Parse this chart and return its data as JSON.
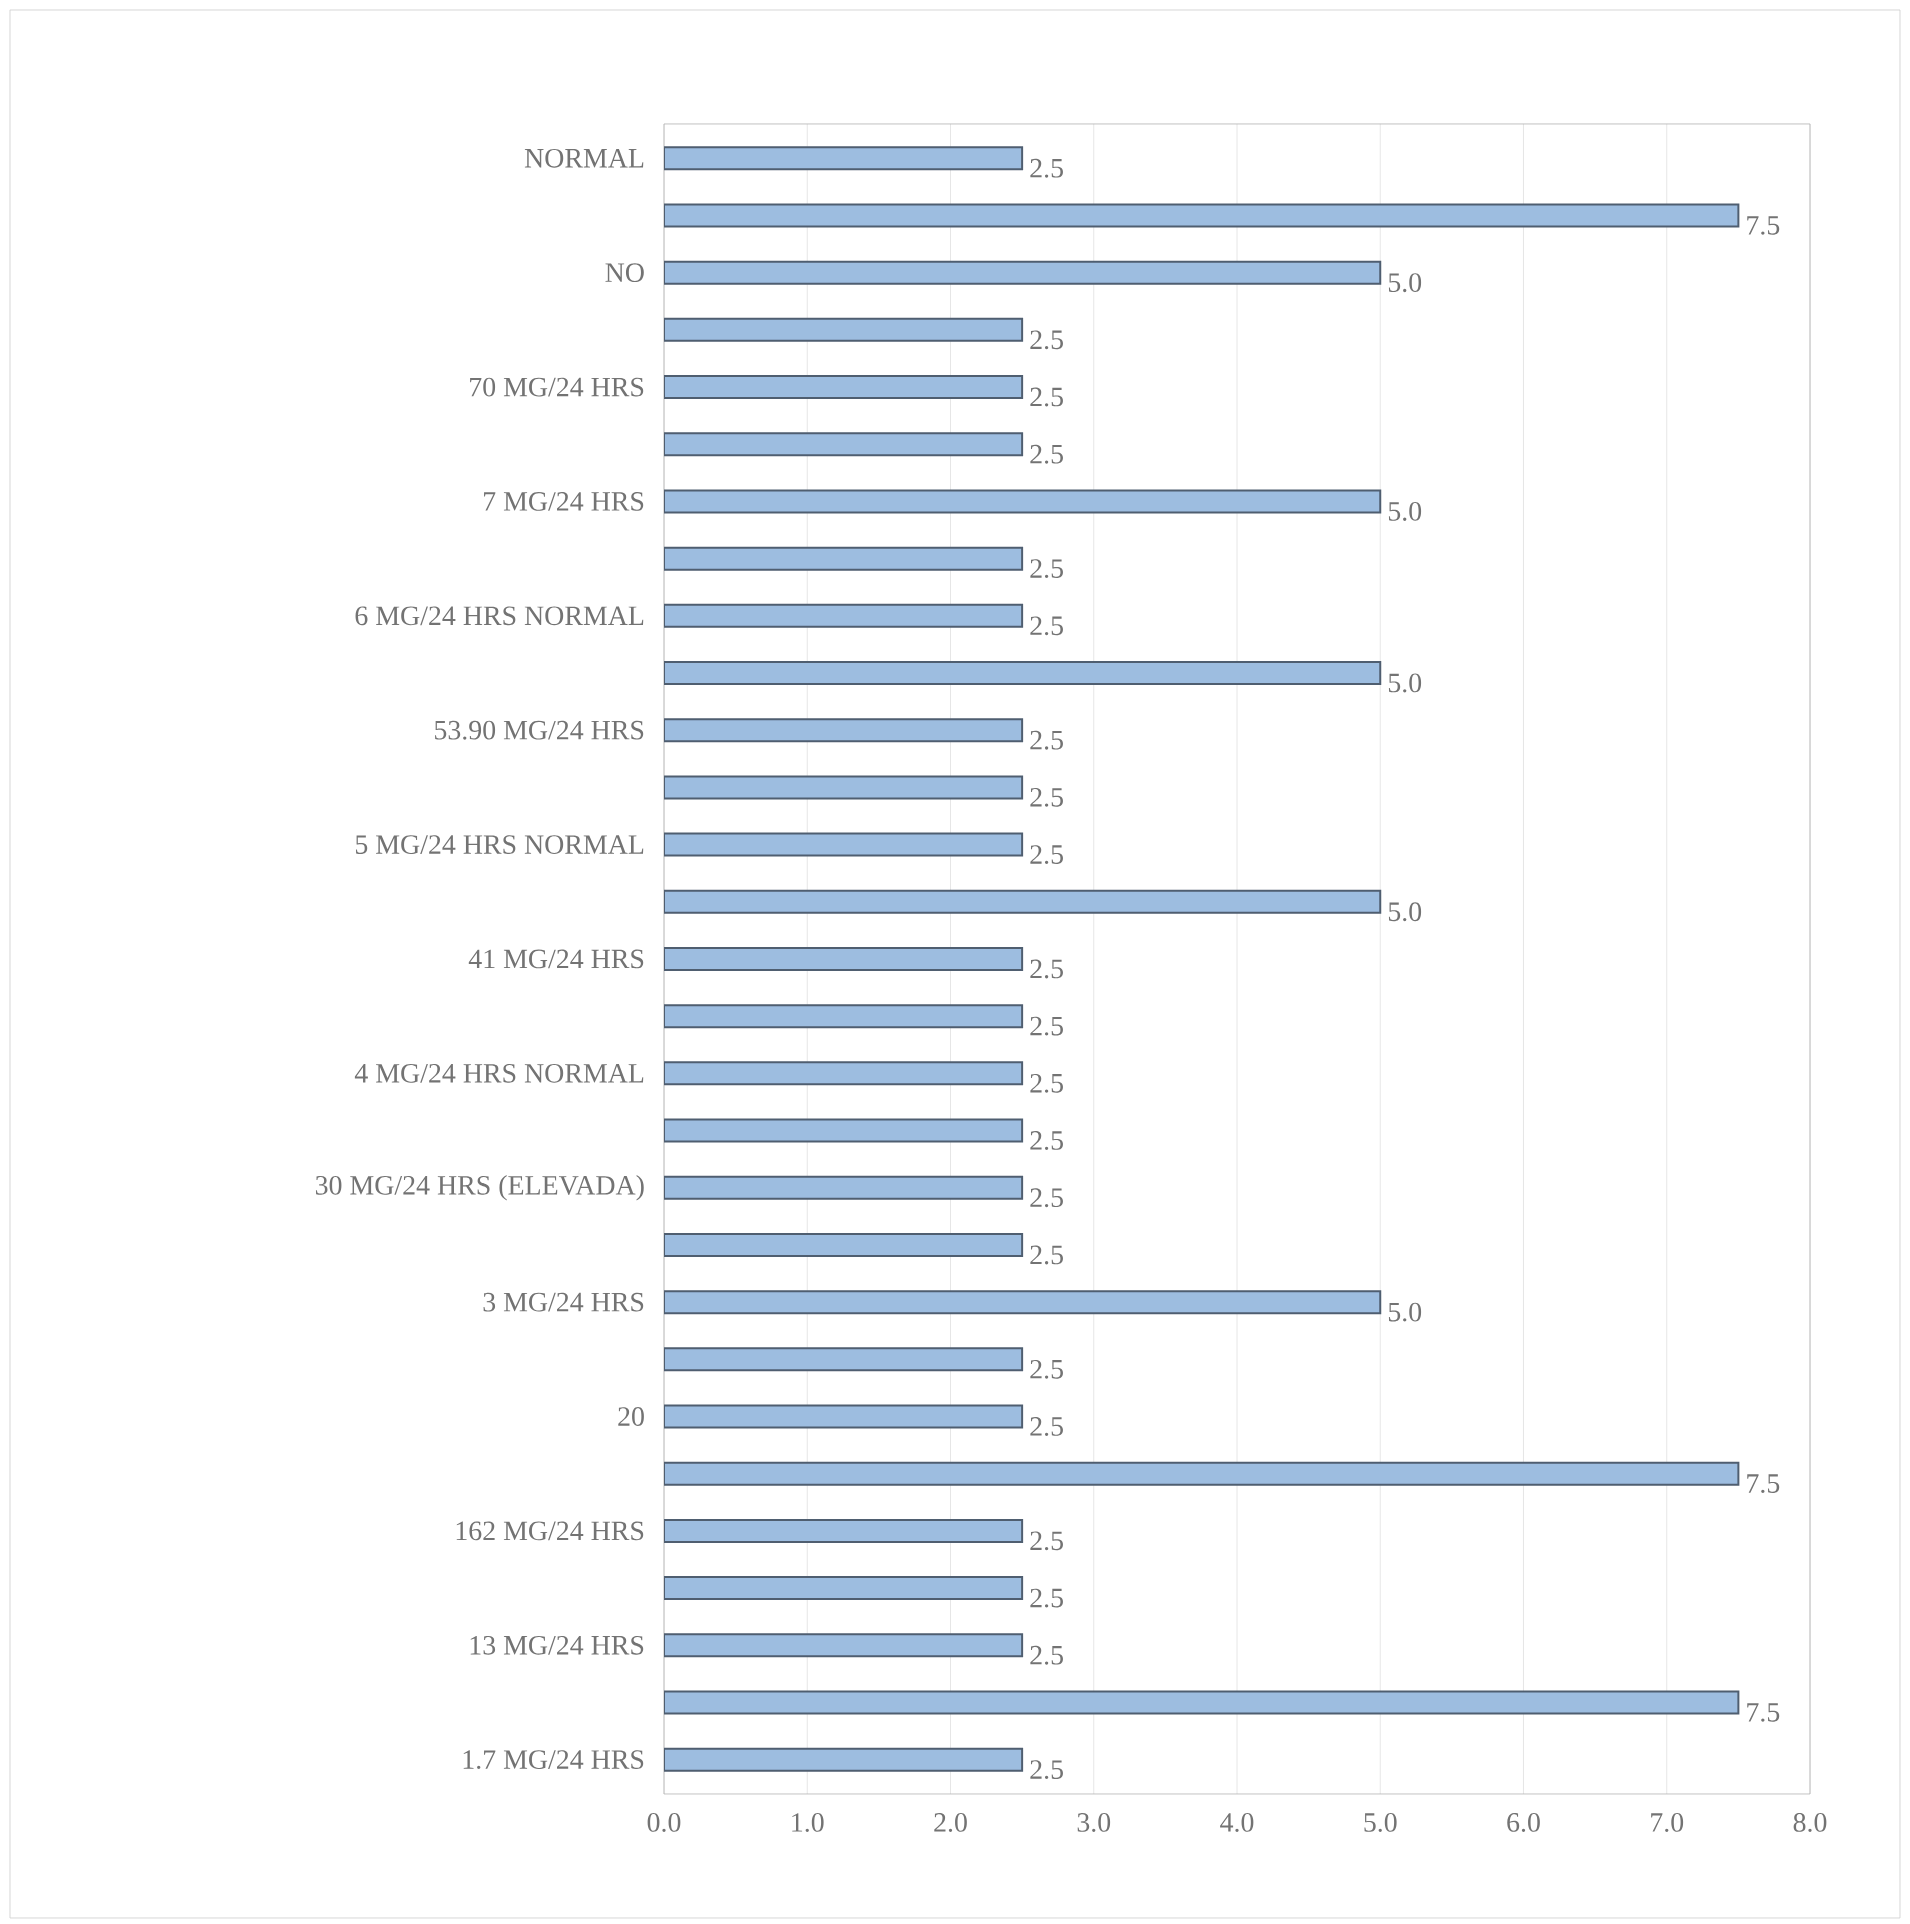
{
  "chart_data": {
    "type": "bar",
    "orientation": "horizontal",
    "categories": [
      "NORMAL",
      null,
      "NO",
      null,
      "70 MG/24 HRS",
      null,
      "7 MG/24 HRS",
      null,
      "6 MG/24 HRS NORMAL",
      null,
      "53.90 MG/24 HRS",
      null,
      "5 MG/24 HRS NORMAL",
      null,
      "41 MG/24 HRS",
      null,
      "4 MG/24 HRS NORMAL",
      null,
      "30 MG/24 HRS (ELEVADA)",
      null,
      "3 MG/24 HRS",
      null,
      "20",
      null,
      "162 MG/24 HRS",
      null,
      "13 MG/24 HRS",
      null,
      "1.7 MG/24 HRS"
    ],
    "values": [
      2.5,
      7.5,
      5.0,
      2.5,
      2.5,
      2.5,
      5.0,
      2.5,
      2.5,
      5.0,
      2.5,
      2.5,
      2.5,
      5.0,
      2.5,
      2.5,
      2.5,
      2.5,
      2.5,
      2.5,
      5.0,
      2.5,
      2.5,
      7.5,
      2.5,
      2.5,
      2.5,
      7.5,
      2.5
    ],
    "value_labels": [
      "2.5",
      "7.5",
      "5.0",
      "2.5",
      "2.5",
      "2.5",
      "5.0",
      "2.5",
      "2.5",
      "5.0",
      "2.5",
      "2.5",
      "2.5",
      "5.0",
      "2.5",
      "2.5",
      "2.5",
      "2.5",
      "2.5",
      "2.5",
      "5.0",
      "2.5",
      "2.5",
      "7.5",
      "2.5",
      "2.5",
      "2.5",
      "7.5",
      "2.5"
    ],
    "color": "#9dbde0",
    "xlim": [
      0,
      8
    ],
    "xticks": [
      {
        "value": 0,
        "label": "0.0"
      },
      {
        "value": 1,
        "label": "1.0"
      },
      {
        "value": 2,
        "label": "2.0"
      },
      {
        "value": 3,
        "label": "3.0"
      },
      {
        "value": 4,
        "label": "4.0"
      },
      {
        "value": 5,
        "label": "5.0"
      },
      {
        "value": 6,
        "label": "6.0"
      },
      {
        "value": 7,
        "label": "7.0"
      },
      {
        "value": 8,
        "label": "8.0"
      }
    ],
    "grid": "x"
  }
}
